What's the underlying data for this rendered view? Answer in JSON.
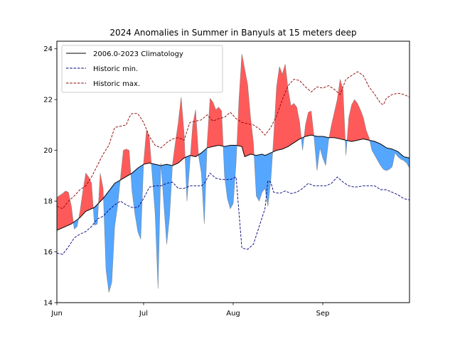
{
  "chart_data": {
    "type": "line",
    "title": "2024 Anomalies in Summer in Banyuls at 15 meters deep",
    "xlabel": "",
    "ylabel": "",
    "xlim": [
      0,
      122
    ],
    "ylim": [
      14,
      24.3
    ],
    "yticks": [
      14,
      16,
      18,
      20,
      22,
      24
    ],
    "xticks": [
      {
        "x": 0,
        "label": "Jun"
      },
      {
        "x": 30,
        "label": "Jul"
      },
      {
        "x": 61,
        "label": "Aug"
      },
      {
        "x": 92,
        "label": "Sep"
      }
    ],
    "grid": false,
    "legend_position": "top-left",
    "colors": {
      "climatology": "#000000",
      "historic_min": "#000080",
      "historic_max": "#8b0000",
      "above": "#ff5a5a",
      "below": "#55a6ff"
    },
    "legend": [
      {
        "key": "climatology",
        "label": "2006.0-2023 Climatology",
        "style": "solid"
      },
      {
        "key": "historic_min",
        "label": "Historic min.",
        "style": "dashed"
      },
      {
        "key": "historic_max",
        "label": "Historic max.",
        "style": "dashed"
      }
    ],
    "series": [
      {
        "key": "climatology",
        "points": [
          [
            0,
            16.85
          ],
          [
            5,
            17.1
          ],
          [
            8,
            17.35
          ],
          [
            10,
            17.6
          ],
          [
            13,
            17.75
          ],
          [
            16,
            18.1
          ],
          [
            18,
            18.4
          ],
          [
            20,
            18.7
          ],
          [
            23,
            18.9
          ],
          [
            26,
            19.1
          ],
          [
            28,
            19.3
          ],
          [
            30,
            19.45
          ],
          [
            32,
            19.5
          ],
          [
            34,
            19.45
          ],
          [
            36,
            19.4
          ],
          [
            38,
            19.45
          ],
          [
            40,
            19.4
          ],
          [
            42,
            19.5
          ],
          [
            44,
            19.7
          ],
          [
            46,
            19.8
          ],
          [
            48,
            19.75
          ],
          [
            50,
            19.9
          ],
          [
            52,
            20.1
          ],
          [
            54,
            20.15
          ],
          [
            56,
            20.2
          ],
          [
            58,
            20.15
          ],
          [
            60,
            20.2
          ],
          [
            62,
            20.2
          ],
          [
            64,
            20.15
          ],
          [
            65,
            19.75
          ],
          [
            67,
            19.85
          ],
          [
            69,
            19.8
          ],
          [
            71,
            19.85
          ],
          [
            72,
            19.8
          ],
          [
            74,
            19.9
          ],
          [
            76,
            20.0
          ],
          [
            78,
            20.05
          ],
          [
            80,
            20.15
          ],
          [
            82,
            20.3
          ],
          [
            84,
            20.45
          ],
          [
            86,
            20.55
          ],
          [
            88,
            20.6
          ],
          [
            90,
            20.55
          ],
          [
            92,
            20.55
          ],
          [
            94,
            20.5
          ],
          [
            96,
            20.5
          ],
          [
            98,
            20.45
          ],
          [
            100,
            20.4
          ],
          [
            102,
            20.35
          ],
          [
            104,
            20.4
          ],
          [
            106,
            20.45
          ],
          [
            108,
            20.4
          ],
          [
            110,
            20.35
          ],
          [
            112,
            20.25
          ],
          [
            114,
            20.1
          ],
          [
            116,
            20.05
          ],
          [
            118,
            19.95
          ],
          [
            120,
            19.75
          ],
          [
            122,
            19.7
          ]
        ]
      },
      {
        "key": "historic_min",
        "points": [
          [
            0,
            15.95
          ],
          [
            2,
            15.9
          ],
          [
            4,
            16.2
          ],
          [
            6,
            16.55
          ],
          [
            8,
            16.7
          ],
          [
            10,
            16.8
          ],
          [
            12,
            17.0
          ],
          [
            14,
            17.3
          ],
          [
            16,
            17.4
          ],
          [
            18,
            17.65
          ],
          [
            20,
            17.85
          ],
          [
            22,
            18.0
          ],
          [
            24,
            17.85
          ],
          [
            26,
            17.75
          ],
          [
            28,
            17.75
          ],
          [
            30,
            18.1
          ],
          [
            32,
            18.55
          ],
          [
            34,
            18.6
          ],
          [
            36,
            18.6
          ],
          [
            38,
            18.7
          ],
          [
            40,
            18.75
          ],
          [
            42,
            18.5
          ],
          [
            44,
            18.5
          ],
          [
            46,
            18.6
          ],
          [
            48,
            18.6
          ],
          [
            50,
            18.6
          ],
          [
            51,
            18.7
          ],
          [
            53,
            19.1
          ],
          [
            55,
            18.9
          ],
          [
            57,
            18.85
          ],
          [
            60,
            18.85
          ],
          [
            62,
            18.95
          ],
          [
            64,
            16.15
          ],
          [
            66,
            16.1
          ],
          [
            68,
            16.3
          ],
          [
            70,
            17.0
          ],
          [
            72,
            17.7
          ],
          [
            73,
            18.8
          ],
          [
            74,
            18.75
          ],
          [
            75,
            18.35
          ],
          [
            77,
            18.3
          ],
          [
            79,
            18.4
          ],
          [
            81,
            18.3
          ],
          [
            83,
            18.35
          ],
          [
            85,
            18.5
          ],
          [
            87,
            18.7
          ],
          [
            89,
            18.6
          ],
          [
            91,
            18.6
          ],
          [
            93,
            18.6
          ],
          [
            95,
            18.7
          ],
          [
            97,
            18.95
          ],
          [
            99,
            18.75
          ],
          [
            101,
            18.6
          ],
          [
            103,
            18.55
          ],
          [
            106,
            18.6
          ],
          [
            110,
            18.6
          ],
          [
            112,
            18.45
          ],
          [
            114,
            18.45
          ],
          [
            116,
            18.35
          ],
          [
            118,
            18.25
          ],
          [
            120,
            18.1
          ],
          [
            122,
            18.05
          ]
        ]
      },
      {
        "key": "historic_max",
        "points": [
          [
            0,
            17.8
          ],
          [
            2,
            17.7
          ],
          [
            4,
            18.0
          ],
          [
            6,
            18.2
          ],
          [
            8,
            18.45
          ],
          [
            10,
            18.6
          ],
          [
            12,
            18.95
          ],
          [
            14,
            19.4
          ],
          [
            16,
            19.85
          ],
          [
            18,
            20.2
          ],
          [
            20,
            20.9
          ],
          [
            22,
            20.95
          ],
          [
            24,
            21.0
          ],
          [
            25,
            21.3
          ],
          [
            26,
            21.45
          ],
          [
            28,
            21.45
          ],
          [
            30,
            21.1
          ],
          [
            32,
            20.55
          ],
          [
            34,
            20.2
          ],
          [
            36,
            20.1
          ],
          [
            38,
            20.3
          ],
          [
            40,
            20.45
          ],
          [
            42,
            20.5
          ],
          [
            44,
            20.4
          ],
          [
            46,
            21.1
          ],
          [
            48,
            21.15
          ],
          [
            50,
            21.2
          ],
          [
            52,
            21.4
          ],
          [
            54,
            21.15
          ],
          [
            56,
            21.25
          ],
          [
            58,
            21.3
          ],
          [
            60,
            21.5
          ],
          [
            62,
            21.25
          ],
          [
            64,
            21.1
          ],
          [
            66,
            21.05
          ],
          [
            68,
            21.0
          ],
          [
            70,
            20.85
          ],
          [
            72,
            20.6
          ],
          [
            74,
            20.9
          ],
          [
            76,
            21.35
          ],
          [
            78,
            22.0
          ],
          [
            80,
            22.55
          ],
          [
            82,
            22.8
          ],
          [
            84,
            22.75
          ],
          [
            86,
            22.5
          ],
          [
            88,
            22.3
          ],
          [
            90,
            22.5
          ],
          [
            92,
            22.45
          ],
          [
            94,
            22.55
          ],
          [
            96,
            22.4
          ],
          [
            98,
            22.2
          ],
          [
            100,
            22.8
          ],
          [
            102,
            22.95
          ],
          [
            104,
            23.1
          ],
          [
            106,
            22.95
          ],
          [
            108,
            22.5
          ],
          [
            110,
            22.2
          ],
          [
            112,
            21.85
          ],
          [
            113,
            21.8
          ],
          [
            114,
            22.05
          ],
          [
            116,
            22.2
          ],
          [
            118,
            22.25
          ],
          [
            120,
            22.2
          ],
          [
            122,
            22.1
          ]
        ]
      },
      {
        "key": "observed_2024",
        "points": [
          [
            0,
            18.15
          ],
          [
            2,
            18.3
          ],
          [
            3,
            18.4
          ],
          [
            4,
            18.35
          ],
          [
            5,
            17.8
          ],
          [
            6,
            16.9
          ],
          [
            7,
            17.0
          ],
          [
            8,
            17.6
          ],
          [
            9,
            18.4
          ],
          [
            10,
            19.1
          ],
          [
            11,
            18.95
          ],
          [
            12,
            18.7
          ],
          [
            13,
            17.05
          ],
          [
            14,
            17.1
          ],
          [
            15,
            19.1
          ],
          [
            16,
            18.5
          ],
          [
            17,
            15.3
          ],
          [
            18,
            14.4
          ],
          [
            19,
            14.8
          ],
          [
            20,
            17.0
          ],
          [
            21,
            17.8
          ],
          [
            22,
            18.9
          ],
          [
            23,
            20.0
          ],
          [
            24,
            20.05
          ],
          [
            25,
            20.0
          ],
          [
            26,
            18.4
          ],
          [
            27,
            17.5
          ],
          [
            28,
            16.8
          ],
          [
            29,
            16.5
          ],
          [
            30,
            19.5
          ],
          [
            31,
            20.8
          ],
          [
            32,
            20.5
          ],
          [
            33,
            19.0
          ],
          [
            34,
            17.5
          ],
          [
            35,
            14.55
          ],
          [
            36,
            19.5
          ],
          [
            38,
            16.3
          ],
          [
            39,
            17.4
          ],
          [
            40,
            19.45
          ],
          [
            41,
            20.3
          ],
          [
            42,
            21.1
          ],
          [
            43,
            22.1
          ],
          [
            44,
            20.7
          ],
          [
            45,
            18.0
          ],
          [
            46,
            19.5
          ],
          [
            47,
            21.0
          ],
          [
            48,
            21.6
          ],
          [
            49,
            19.8
          ],
          [
            50,
            19.1
          ],
          [
            51,
            17.1
          ],
          [
            52,
            20.3
          ],
          [
            53,
            22.05
          ],
          [
            54,
            21.9
          ],
          [
            55,
            21.6
          ],
          [
            56,
            21.7
          ],
          [
            57,
            21.55
          ],
          [
            58,
            19.0
          ],
          [
            59,
            18.1
          ],
          [
            60,
            17.7
          ],
          [
            61,
            17.9
          ],
          [
            62,
            19.5
          ],
          [
            63,
            22.0
          ],
          [
            64,
            23.8
          ],
          [
            65,
            23.2
          ],
          [
            66,
            22.6
          ],
          [
            67,
            21.3
          ],
          [
            68,
            20.3
          ],
          [
            69,
            18.2
          ],
          [
            70,
            18.0
          ],
          [
            71,
            18.35
          ],
          [
            72,
            18.5
          ],
          [
            73,
            17.8
          ],
          [
            74,
            18.8
          ],
          [
            75,
            20.5
          ],
          [
            76,
            22.5
          ],
          [
            77,
            23.3
          ],
          [
            78,
            23.0
          ],
          [
            79,
            23.4
          ],
          [
            80,
            22.4
          ],
          [
            81,
            21.75
          ],
          [
            82,
            21.85
          ],
          [
            83,
            21.7
          ],
          [
            84,
            21.1
          ],
          [
            85,
            20.0
          ],
          [
            86,
            21.0
          ],
          [
            87,
            21.5
          ],
          [
            88,
            21.55
          ],
          [
            89,
            20.5
          ],
          [
            90,
            19.2
          ],
          [
            91,
            20.1
          ],
          [
            92,
            19.7
          ],
          [
            93,
            19.4
          ],
          [
            94,
            20.4
          ],
          [
            95,
            21.0
          ],
          [
            96,
            21.5
          ],
          [
            97,
            22.0
          ],
          [
            98,
            22.8
          ],
          [
            99,
            22.4
          ],
          [
            100,
            19.8
          ],
          [
            101,
            21.3
          ],
          [
            102,
            21.8
          ],
          [
            103,
            22.0
          ],
          [
            104,
            21.85
          ],
          [
            105,
            21.6
          ],
          [
            106,
            21.3
          ],
          [
            107,
            20.8
          ],
          [
            108,
            20.5
          ],
          [
            109,
            20.0
          ],
          [
            110,
            19.8
          ],
          [
            111,
            19.6
          ],
          [
            112,
            19.4
          ],
          [
            113,
            19.25
          ],
          [
            114,
            19.2
          ],
          [
            115,
            19.25
          ],
          [
            116,
            19.35
          ],
          [
            117,
            19.9
          ],
          [
            118,
            19.75
          ],
          [
            119,
            19.65
          ],
          [
            120,
            19.6
          ],
          [
            121,
            19.5
          ],
          [
            122,
            19.3
          ]
        ]
      }
    ]
  }
}
